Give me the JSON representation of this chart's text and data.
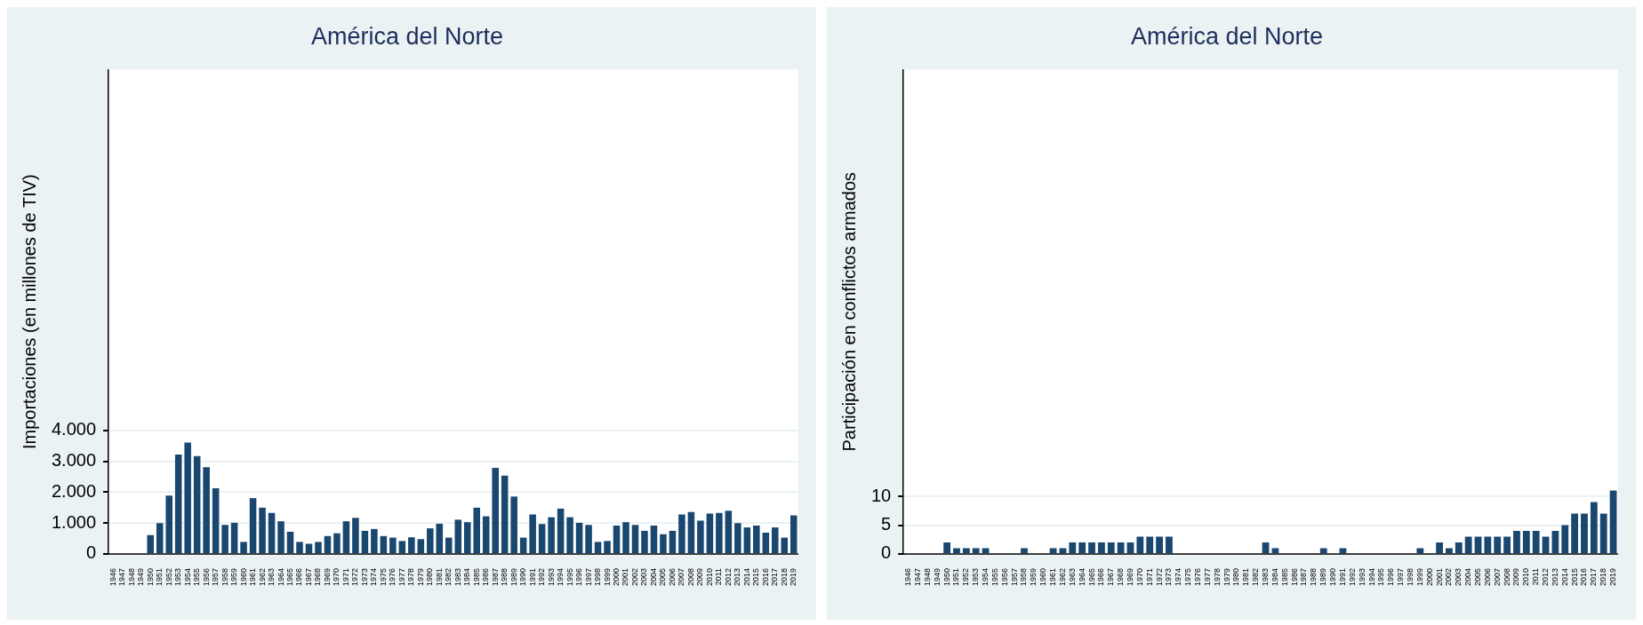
{
  "chart_data": [
    {
      "type": "bar",
      "title": "América del Norte",
      "ylabel": "Importaciones (en millones de TIV)",
      "color": "#1a476f",
      "grid": "y",
      "ylim": [
        0,
        15700
      ],
      "yticks": [
        0,
        {
          "value": 1000,
          "label": "1.000"
        },
        {
          "value": 2000,
          "label": "2.000"
        },
        {
          "value": 3000,
          "label": "3.000"
        },
        {
          "value": 4000,
          "label": "4.000"
        }
      ],
      "categories": [
        "1946",
        "1947",
        "1948",
        "1949",
        "1950",
        "1951",
        "1952",
        "1953",
        "1954",
        "1955",
        "1956",
        "1957",
        "1958",
        "1959",
        "1960",
        "1961",
        "1962",
        "1963",
        "1964",
        "1965",
        "1966",
        "1967",
        "1968",
        "1969",
        "1970",
        "1971",
        "1972",
        "1973",
        "1974",
        "1975",
        "1976",
        "1977",
        "1978",
        "1979",
        "1980",
        "1981",
        "1982",
        "1983",
        "1984",
        "1985",
        "1986",
        "1987",
        "1988",
        "1989",
        "1990",
        "1991",
        "1992",
        "1993",
        "1994",
        "1995",
        "1996",
        "1997",
        "1998",
        "1999",
        "2000",
        "2001",
        "2002",
        "2003",
        "2004",
        "2005",
        "2006",
        "2007",
        "2008",
        "2009",
        "2010",
        "2011",
        "2012",
        "2013",
        "2014",
        "2015",
        "2016",
        "2017",
        "2018",
        "2019"
      ],
      "values": [
        0,
        0,
        0,
        0,
        610,
        1000,
        1890,
        3220,
        3610,
        3170,
        2810,
        2130,
        940,
        1010,
        390,
        1810,
        1500,
        1330,
        1060,
        720,
        390,
        330,
        390,
        580,
        670,
        1060,
        1170,
        750,
        810,
        580,
        530,
        420,
        540,
        480,
        830,
        980,
        530,
        1110,
        1030,
        1500,
        1220,
        2790,
        2540,
        1860,
        530,
        1280,
        970,
        1190,
        1470,
        1190,
        1010,
        940,
        390,
        420,
        920,
        1030,
        940,
        750,
        920,
        640,
        750,
        1280,
        1360,
        1080,
        1310,
        1330,
        1400,
        1000,
        860,
        920,
        690,
        860,
        530,
        1250
      ]
    },
    {
      "type": "bar",
      "title": "América del Norte",
      "ylabel": "Participación en conflictos armados",
      "color": "#1a476f",
      "grid": "y",
      "ylim": [
        0,
        84
      ],
      "yticks": [
        0,
        5,
        10
      ],
      "categories": [
        "1946",
        "1947",
        "1948",
        "1949",
        "1950",
        "1951",
        "1952",
        "1953",
        "1954",
        "1955",
        "1956",
        "1957",
        "1958",
        "1959",
        "1960",
        "1961",
        "1962",
        "1963",
        "1964",
        "1965",
        "1966",
        "1967",
        "1968",
        "1969",
        "1970",
        "1971",
        "1972",
        "1973",
        "1974",
        "1975",
        "1976",
        "1977",
        "1978",
        "1979",
        "1980",
        "1981",
        "1982",
        "1983",
        "1984",
        "1985",
        "1986",
        "1987",
        "1988",
        "1989",
        "1990",
        "1991",
        "1992",
        "1993",
        "1994",
        "1995",
        "1996",
        "1997",
        "1998",
        "1999",
        "2000",
        "2001",
        "2002",
        "2003",
        "2004",
        "2005",
        "2006",
        "2007",
        "2008",
        "2009",
        "2010",
        "2011",
        "2012",
        "2013",
        "2014",
        "2015",
        "2016",
        "2017",
        "2018",
        "2019"
      ],
      "values": [
        0,
        0,
        0,
        0,
        2,
        1,
        1,
        1,
        1,
        0,
        0,
        0,
        1,
        0,
        0,
        1,
        1,
        2,
        2,
        2,
        2,
        2,
        2,
        2,
        3,
        3,
        3,
        3,
        0,
        0,
        0,
        0,
        0,
        0,
        0,
        0,
        0,
        2,
        1,
        0,
        0,
        0,
        0,
        1,
        0,
        1,
        0,
        0,
        0,
        0,
        0,
        0,
        0,
        1,
        0,
        2,
        1,
        2,
        3,
        3,
        3,
        3,
        3,
        4,
        4,
        4,
        3,
        4,
        5,
        7,
        7,
        9,
        7,
        11
      ]
    }
  ]
}
